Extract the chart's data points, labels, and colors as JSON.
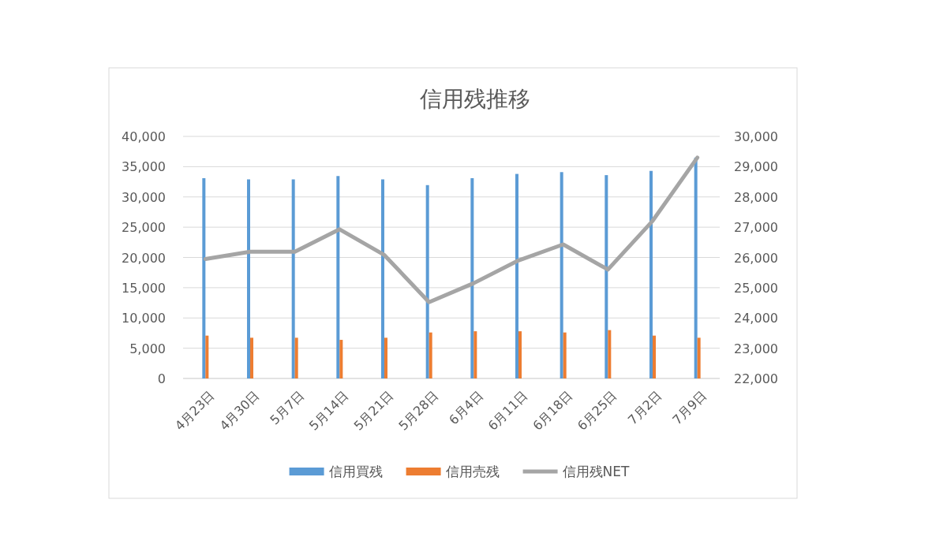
{
  "chart_data": {
    "type": "bar",
    "title": "信用残推移",
    "categories": [
      "4月23日",
      "4月30日",
      "5月7日",
      "5月14日",
      "5月21日",
      "5月28日",
      "6月4日",
      "6月11日",
      "6月18日",
      "6月25日",
      "7月2日",
      "7月9日"
    ],
    "series": [
      {
        "name": "信用買残",
        "color": "#5b9bd5",
        "values": [
          33100,
          32900,
          32900,
          33450,
          32900,
          31950,
          33100,
          33800,
          34100,
          33600,
          34300,
          36500
        ]
      },
      {
        "name": "信用売残",
        "color": "#ed7d31",
        "values": [
          7080,
          6730,
          6730,
          6380,
          6730,
          7600,
          7800,
          7800,
          7600,
          7990,
          7080,
          6730
        ]
      },
      {
        "name": "信用残NET",
        "color": "#a5a5a5",
        "type": "line",
        "axis": "y2",
        "values": [
          25950,
          26190,
          26190,
          26930,
          26080,
          24520,
          25150,
          25900,
          26430,
          25600,
          27210,
          29300
        ]
      }
    ],
    "ylim": [
      0,
      40000
    ],
    "yticks": [
      {
        "value": 0,
        "label": "0"
      },
      {
        "value": 5000,
        "label": "5,000"
      },
      {
        "value": 10000,
        "label": "10,000"
      },
      {
        "value": 15000,
        "label": "15,000"
      },
      {
        "value": 20000,
        "label": "20,000"
      },
      {
        "value": 25000,
        "label": "25,000"
      },
      {
        "value": 30000,
        "label": "30,000"
      },
      {
        "value": 35000,
        "label": "35,000"
      },
      {
        "value": 40000,
        "label": "40,000"
      }
    ],
    "y2lim": [
      22000,
      30000
    ],
    "y2ticks": [
      {
        "value": 22000,
        "label": "22,000"
      },
      {
        "value": 23000,
        "label": "23,000"
      },
      {
        "value": 24000,
        "label": "24,000"
      },
      {
        "value": 25000,
        "label": "25,000"
      },
      {
        "value": 26000,
        "label": "26,000"
      },
      {
        "value": 27000,
        "label": "27,000"
      },
      {
        "value": 28000,
        "label": "28,000"
      },
      {
        "value": 29000,
        "label": "29,000"
      },
      {
        "value": 30000,
        "label": "30,000"
      }
    ],
    "grid": "y",
    "legend": "bottom",
    "marker": "none"
  }
}
